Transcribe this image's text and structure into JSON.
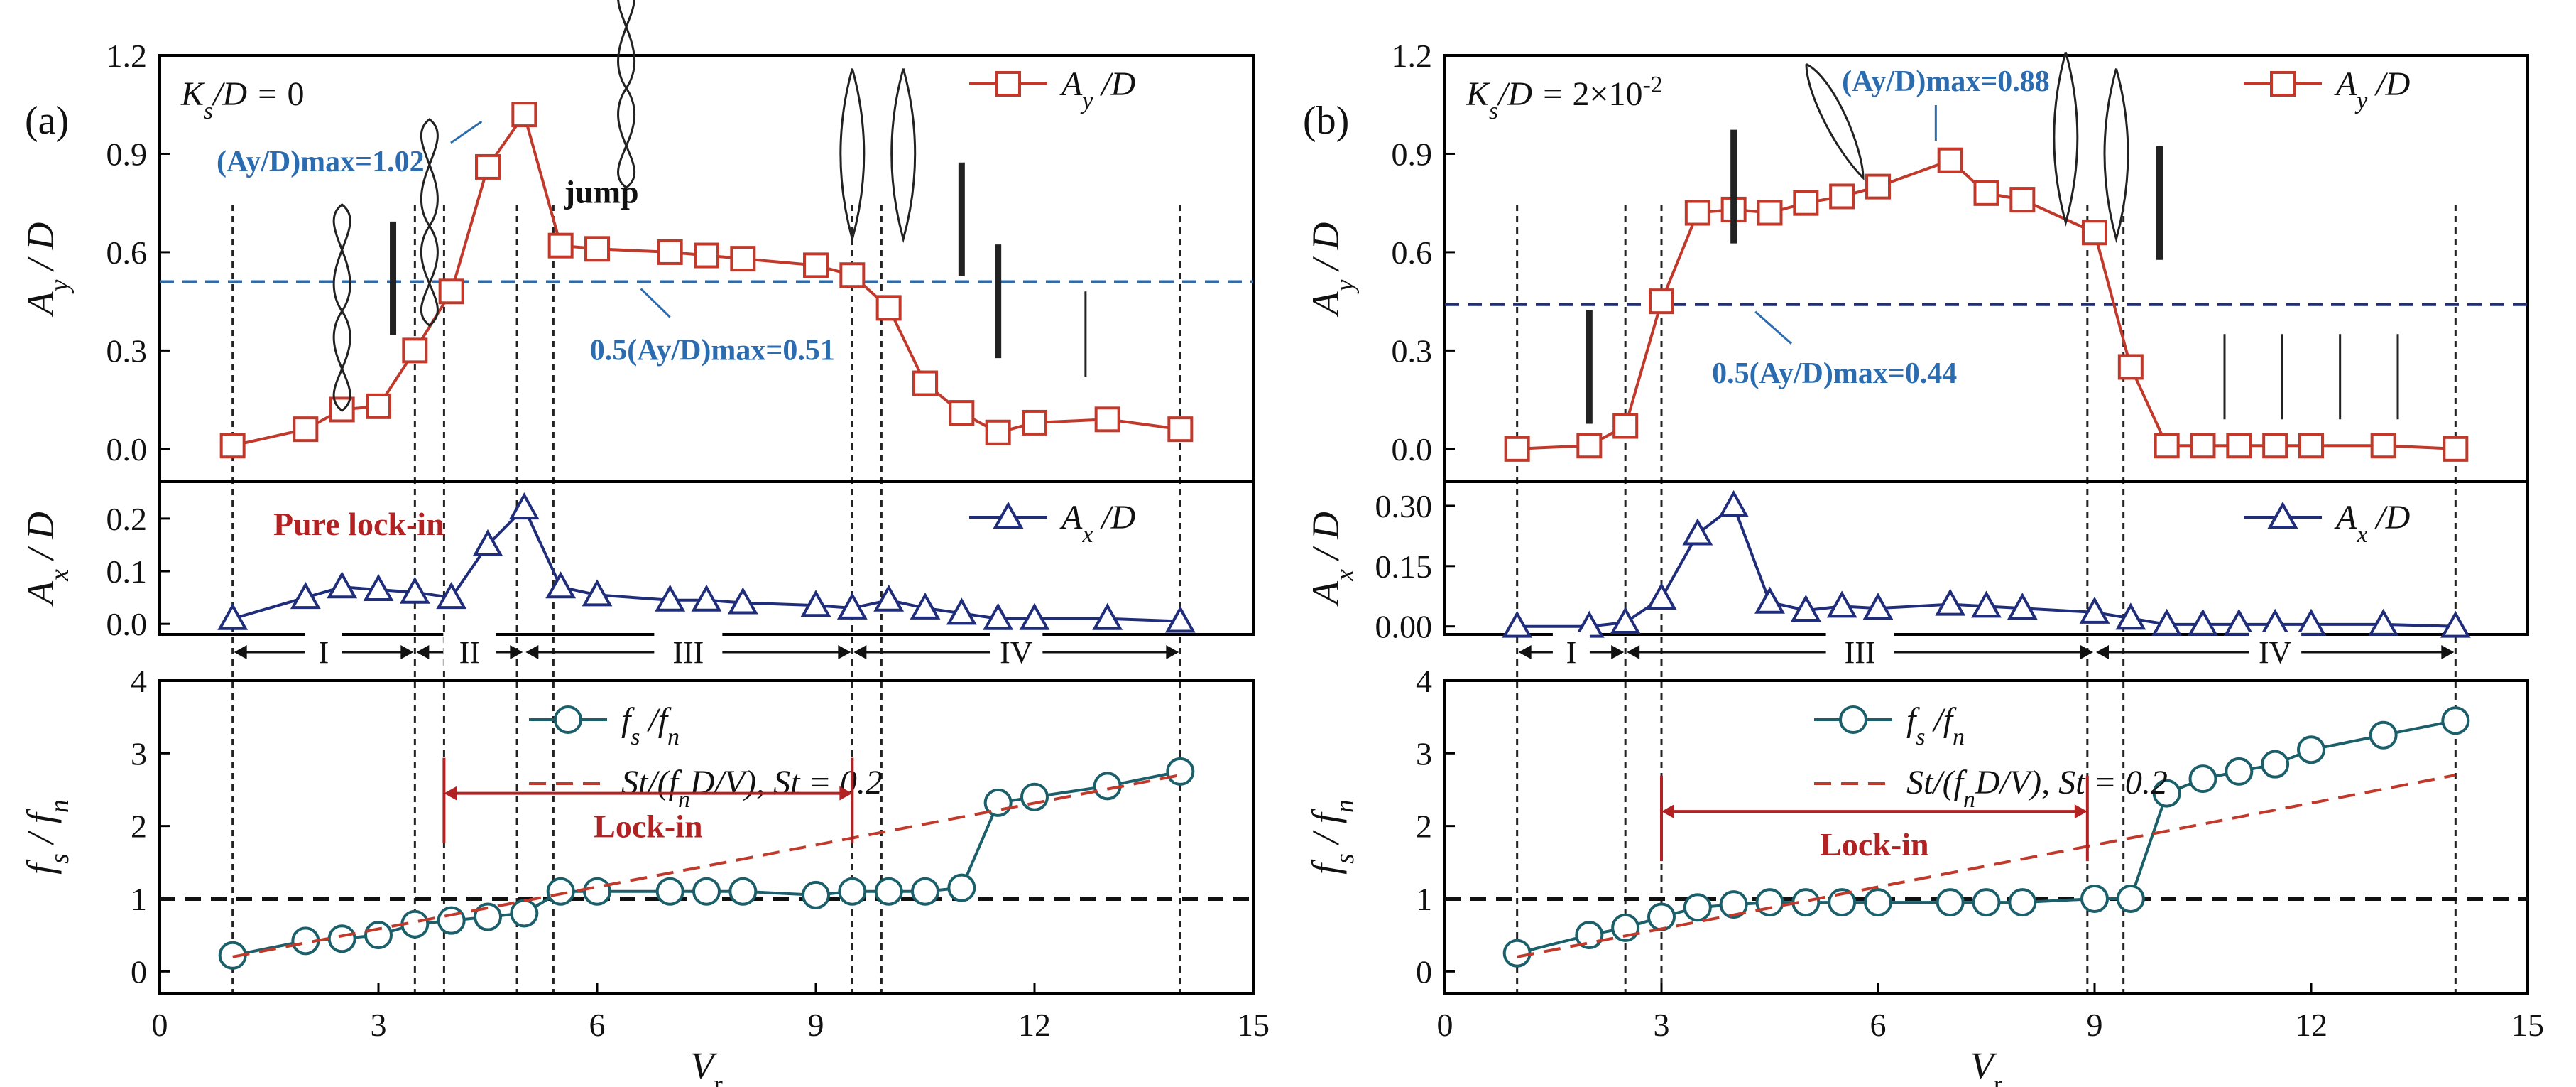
{
  "chart_data": [
    {
      "panel": "(a)",
      "type": "line",
      "param_label": "Ks/D = 0",
      "xlabel": "Vr",
      "xlim": [
        0,
        15
      ],
      "xticks": [
        0,
        3,
        6,
        9,
        12,
        15
      ],
      "subplots": {
        "Ay": {
          "ylabel": "Ay / D",
          "ylim": [
            -0.1,
            1.2
          ],
          "yticks": [
            0.0,
            0.3,
            0.6,
            0.9,
            1.2
          ],
          "series": [
            {
              "name": "Ay /D",
              "marker": "square",
              "color": "#c0392b",
              "x": [
                1,
                2,
                2.5,
                3,
                3.5,
                4,
                4.5,
                5,
                5.5,
                6,
                7,
                7.5,
                8,
                9,
                9.5,
                10,
                10.5,
                11,
                11.5,
                12,
                13,
                14
              ],
              "y": [
                0.01,
                0.06,
                0.12,
                0.13,
                0.3,
                0.48,
                0.86,
                1.02,
                0.62,
                0.61,
                0.6,
                0.59,
                0.58,
                0.56,
                0.53,
                0.43,
                0.2,
                0.11,
                0.05,
                0.08,
                0.09,
                0.06
              ]
            }
          ],
          "hline": 0.51,
          "annotations": [
            "(Ay/D)max=1.02",
            "0.5(Ay/D)max=0.51",
            "jump"
          ]
        },
        "Ax": {
          "ylabel": "Ax / D",
          "ylim": [
            -0.02,
            0.27
          ],
          "yticks": [
            0.0,
            0.1,
            0.2
          ],
          "series": [
            {
              "name": "Ax /D",
              "marker": "triangle",
              "color": "#1f2d7a",
              "x": [
                1,
                2,
                2.5,
                3,
                3.5,
                4,
                4.5,
                5,
                5.5,
                6,
                7,
                7.5,
                8,
                9,
                9.5,
                10,
                10.5,
                11,
                11.5,
                12,
                13,
                14
              ],
              "y": [
                0.01,
                0.05,
                0.07,
                0.065,
                0.06,
                0.05,
                0.15,
                0.22,
                0.07,
                0.055,
                0.045,
                0.045,
                0.04,
                0.035,
                0.03,
                0.045,
                0.03,
                0.02,
                0.01,
                0.01,
                0.01,
                0.005
              ]
            }
          ],
          "annotations": [
            "Pure lock-in"
          ],
          "regions": [
            {
              "label": "I",
              "from": 1,
              "to": 3.5
            },
            {
              "label": "II",
              "from": 3.5,
              "to": 5
            },
            {
              "label": "III",
              "from": 5,
              "to": 9.5
            },
            {
              "label": "IV",
              "from": 9.5,
              "to": 14
            }
          ]
        },
        "fs": {
          "ylabel": "fs / fn",
          "ylim": [
            -0.3,
            4
          ],
          "yticks": [
            0,
            1,
            2,
            3,
            4
          ],
          "series": [
            {
              "name": "fs /fn",
              "marker": "circle",
              "color": "#1a5f6a",
              "x": [
                1,
                2,
                2.5,
                3,
                3.5,
                4,
                4.5,
                5,
                5.5,
                6,
                7,
                7.5,
                8,
                9,
                9.5,
                10,
                10.5,
                11,
                11.5,
                12,
                13,
                14
              ],
              "y": [
                0.22,
                0.42,
                0.45,
                0.5,
                0.65,
                0.7,
                0.75,
                0.8,
                1.1,
                1.1,
                1.1,
                1.1,
                1.1,
                1.05,
                1.1,
                1.1,
                1.1,
                1.15,
                2.32,
                2.4,
                2.55,
                2.75
              ]
            },
            {
              "name": "St/(fnD/V), St = 0.2",
              "style": "dashed",
              "color": "#c0392b",
              "x": [
                1,
                14
              ],
              "y": [
                0.2,
                2.7
              ]
            }
          ],
          "hline": 1,
          "annotations": [
            "Lock-in"
          ],
          "lockin": [
            3.9,
            9.5
          ]
        }
      },
      "vlines": [
        1,
        3.5,
        3.9,
        4.9,
        5.4,
        9.5,
        9.9,
        14
      ]
    },
    {
      "panel": "(b)",
      "type": "line",
      "param_label": "Ks/D = 2×10-2",
      "xlabel": "Vr",
      "xlim": [
        0,
        15
      ],
      "xticks": [
        0,
        3,
        6,
        9,
        12,
        15
      ],
      "subplots": {
        "Ay": {
          "ylabel": "Ay / D",
          "ylim": [
            -0.1,
            1.2
          ],
          "yticks": [
            0.0,
            0.3,
            0.6,
            0.9,
            1.2
          ],
          "series": [
            {
              "name": "Ay /D",
              "marker": "square",
              "color": "#c0392b",
              "x": [
                1,
                2,
                2.5,
                3,
                3.5,
                4,
                4.5,
                5,
                5.5,
                6,
                7,
                7.5,
                8,
                9,
                9.5,
                10,
                10.5,
                11,
                11.5,
                12,
                13,
                14
              ],
              "y": [
                0.0,
                0.01,
                0.07,
                0.45,
                0.72,
                0.73,
                0.72,
                0.75,
                0.77,
                0.8,
                0.88,
                0.78,
                0.76,
                0.66,
                0.25,
                0.01,
                0.01,
                0.01,
                0.01,
                0.01,
                0.01,
                0.0
              ]
            }
          ],
          "hline": 0.44,
          "annotations": [
            "(Ay/D)max=0.88",
            "0.5(Ay/D)max=0.44"
          ]
        },
        "Ax": {
          "ylabel": "Ax / D",
          "ylim": [
            -0.02,
            0.36
          ],
          "yticks": [
            0.0,
            0.15,
            0.3
          ],
          "series": [
            {
              "name": "Ax /D",
              "marker": "triangle",
              "color": "#1f2d7a",
              "x": [
                1,
                2,
                2.5,
                3,
                3.5,
                4,
                4.5,
                5,
                5.5,
                6,
                7,
                7.5,
                8,
                9,
                9.5,
                10,
                10.5,
                11,
                11.5,
                12,
                13,
                14
              ],
              "y": [
                0.0,
                0.0,
                0.01,
                0.07,
                0.23,
                0.3,
                0.06,
                0.04,
                0.05,
                0.045,
                0.055,
                0.05,
                0.045,
                0.035,
                0.02,
                0.005,
                0.005,
                0.005,
                0.005,
                0.005,
                0.005,
                0.0
              ]
            }
          ],
          "regions": [
            {
              "label": "I",
              "from": 1,
              "to": 2.5
            },
            {
              "label": "III",
              "from": 2.5,
              "to": 9
            },
            {
              "label": "IV",
              "from": 9,
              "to": 14
            }
          ]
        },
        "fs": {
          "ylabel": "fs / fn",
          "ylim": [
            -0.3,
            4
          ],
          "yticks": [
            0,
            1,
            2,
            3,
            4
          ],
          "series": [
            {
              "name": "fs /fn",
              "marker": "circle",
              "color": "#1a5f6a",
              "x": [
                1,
                2,
                2.5,
                3,
                3.5,
                4,
                4.5,
                5,
                5.5,
                6,
                7,
                7.5,
                8,
                9,
                9.5,
                10,
                10.5,
                11,
                11.5,
                12,
                13,
                14
              ],
              "y": [
                0.25,
                0.5,
                0.6,
                0.75,
                0.88,
                0.92,
                0.95,
                0.95,
                0.95,
                0.95,
                0.95,
                0.95,
                0.95,
                1.0,
                1.0,
                2.45,
                2.65,
                2.75,
                2.85,
                3.05,
                3.25,
                3.45
              ]
            },
            {
              "name": "St/(fnD/V), St = 0.2",
              "style": "dashed",
              "color": "#c0392b",
              "x": [
                1,
                14
              ],
              "y": [
                0.2,
                2.7
              ]
            }
          ],
          "hline": 1,
          "annotations": [
            "Lock-in"
          ],
          "lockin": [
            3,
            8.9
          ]
        }
      },
      "vlines": [
        1,
        2.5,
        3,
        8.9,
        9.4,
        14
      ]
    }
  ],
  "colors": {
    "ay": "#c0392b",
    "ax": "#1f2d7a",
    "fs": "#1a5f6a",
    "annotation_blue": "#2b6cb0",
    "annotation_red": "#b22222"
  }
}
